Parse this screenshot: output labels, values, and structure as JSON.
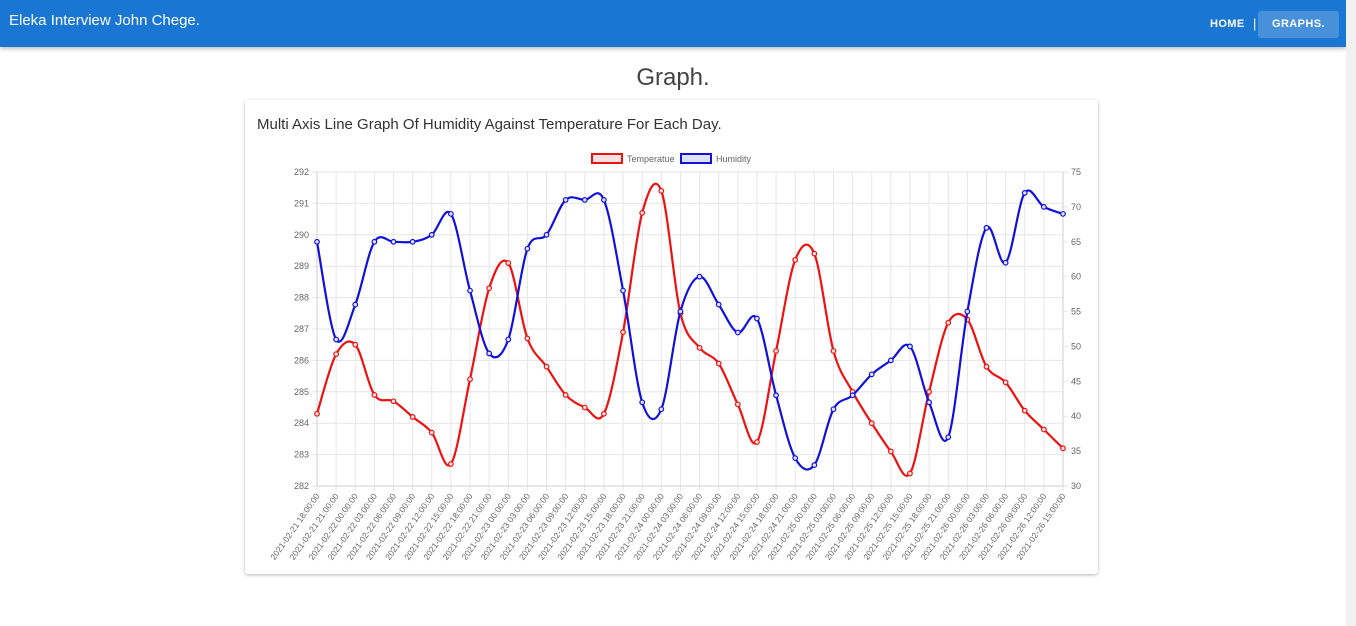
{
  "header": {
    "brand": "Eleka Interview John Chege.",
    "nav_home": "HOME",
    "nav_separator": "|",
    "nav_graphs": "GRAPHS."
  },
  "page": {
    "title": "Graph."
  },
  "card": {
    "title": "Multi Axis Line Graph Of Humidity Against Temperature For Each Day."
  },
  "chart_data": {
    "type": "line",
    "x": [
      "2021-02-21 18:00:00",
      "2021-02-21 21:00:00",
      "2021-02-22 00:00:00",
      "2021-02-22 03:00:00",
      "2021-02-22 06:00:00",
      "2021-02-22 09:00:00",
      "2021-02-22 12:00:00",
      "2021-02-22 15:00:00",
      "2021-02-22 18:00:00",
      "2021-02-22 21:00:00",
      "2021-02-23 00:00:00",
      "2021-02-23 03:00:00",
      "2021-02-23 06:00:00",
      "2021-02-23 09:00:00",
      "2021-02-23 12:00:00",
      "2021-02-23 15:00:00",
      "2021-02-23 18:00:00",
      "2021-02-23 21:00:00",
      "2021-02-24 00:00:00",
      "2021-02-24 03:00:00",
      "2021-02-24 06:00:00",
      "2021-02-24 09:00:00",
      "2021-02-24 12:00:00",
      "2021-02-24 15:00:00",
      "2021-02-24 18:00:00",
      "2021-02-24 21:00:00",
      "2021-02-25 00:00:00",
      "2021-02-25 03:00:00",
      "2021-02-25 06:00:00",
      "2021-02-25 09:00:00",
      "2021-02-25 12:00:00",
      "2021-02-25 15:00:00",
      "2021-02-25 18:00:00",
      "2021-02-25 21:00:00",
      "2021-02-26 00:00:00",
      "2021-02-26 03:00:00",
      "2021-02-26 06:00:00",
      "2021-02-26 09:00:00",
      "2021-02-26 12:00:00",
      "2021-02-26 15:00:00"
    ],
    "series": [
      {
        "name": "Temperatue",
        "axis": "left",
        "color": "#ee1111",
        "fill": "#f4e1e1",
        "values": [
          284.3,
          286.2,
          286.5,
          284.9,
          284.7,
          284.2,
          283.7,
          282.7,
          285.4,
          288.3,
          289.1,
          286.7,
          285.8,
          284.9,
          284.5,
          284.3,
          286.9,
          290.7,
          291.4,
          287.5,
          286.4,
          285.9,
          284.6,
          283.4,
          286.3,
          289.2,
          289.4,
          286.3,
          285,
          284,
          283.1,
          282.4,
          285,
          287.2,
          287.3,
          285.8,
          285.3,
          284.4,
          283.8,
          283.2
        ]
      },
      {
        "name": "Humidity",
        "axis": "right",
        "color": "#1111dd",
        "fill": "#dfe2f4",
        "values": [
          65,
          51,
          56,
          65,
          65,
          65,
          66,
          69,
          58,
          49,
          51,
          64,
          66,
          71,
          71,
          71,
          58,
          42,
          41,
          55,
          60,
          56,
          52,
          54,
          43,
          34,
          33,
          41,
          43,
          46,
          48,
          50,
          42,
          37,
          55,
          67,
          62,
          72,
          70,
          69
        ]
      }
    ],
    "y_left": {
      "min": 282,
      "max": 292,
      "ticks": [
        282,
        283,
        284,
        285,
        286,
        287,
        288,
        289,
        290,
        291,
        292
      ]
    },
    "y_right": {
      "min": 30,
      "max": 75,
      "ticks": [
        30,
        35,
        40,
        45,
        50,
        55,
        60,
        65,
        70,
        75
      ]
    },
    "legend": "top-center",
    "grid": true
  }
}
